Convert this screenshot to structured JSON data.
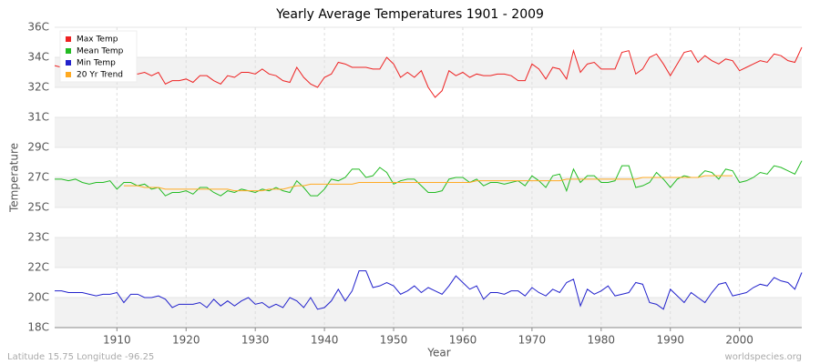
{
  "chart_data": {
    "type": "line",
    "title": "Yearly Average Temperatures 1901 - 2009",
    "xlabel": "Year",
    "ylabel": "Temperature",
    "footer_left": "Latitude 15.75 Longitude -96.25",
    "footer_right": "worldspecies.org",
    "x": [
      1901,
      1902,
      1903,
      1904,
      1905,
      1906,
      1907,
      1908,
      1909,
      1910,
      1911,
      1912,
      1913,
      1914,
      1915,
      1916,
      1917,
      1918,
      1919,
      1920,
      1921,
      1922,
      1923,
      1924,
      1925,
      1926,
      1927,
      1928,
      1929,
      1930,
      1931,
      1932,
      1933,
      1934,
      1935,
      1936,
      1937,
      1938,
      1939,
      1940,
      1941,
      1942,
      1943,
      1944,
      1945,
      1946,
      1947,
      1948,
      1949,
      1950,
      1951,
      1952,
      1953,
      1954,
      1955,
      1956,
      1957,
      1958,
      1959,
      1960,
      1961,
      1962,
      1963,
      1964,
      1965,
      1966,
      1967,
      1968,
      1969,
      1970,
      1971,
      1972,
      1973,
      1974,
      1975,
      1976,
      1977,
      1978,
      1979,
      1980,
      1981,
      1982,
      1983,
      1984,
      1985,
      1986,
      1987,
      1988,
      1989,
      1990,
      1991,
      1992,
      1993,
      1994,
      1995,
      1996,
      1997,
      1998,
      1999,
      2000,
      2001,
      2002,
      2003,
      2004,
      2005,
      2006,
      2007,
      2008,
      2009
    ],
    "xlim": [
      1901,
      2009
    ],
    "xticks": [
      1910,
      1920,
      1930,
      1940,
      1950,
      1960,
      1970,
      1980,
      1990,
      2000
    ],
    "ylim": [
      18,
      36
    ],
    "yticks": [
      {
        "value": 18,
        "label": "18C"
      },
      {
        "value": 19.8,
        "label": "20C"
      },
      {
        "value": 21.6,
        "label": "22C"
      },
      {
        "value": 23.4,
        "label": "23C"
      },
      {
        "value": 25.2,
        "label": "25C"
      },
      {
        "value": 27,
        "label": "27C"
      },
      {
        "value": 28.8,
        "label": "29C"
      },
      {
        "value": 30.6,
        "label": "31C"
      },
      {
        "value": 32.4,
        "label": "32C"
      },
      {
        "value": 34.2,
        "label": "34C"
      },
      {
        "value": 36,
        "label": "36C"
      }
    ],
    "grid": true,
    "legend": "upper left",
    "series": [
      {
        "name": "Max Temp",
        "color": "#ee2222",
        "values": [
          33.7,
          33.6,
          33.7,
          33.5,
          33.6,
          33.4,
          33.5,
          33.7,
          33.6,
          33.3,
          33.4,
          33.3,
          33.2,
          33.3,
          33.1,
          33.3,
          32.6,
          32.8,
          32.8,
          32.9,
          32.7,
          33.1,
          33.1,
          32.8,
          32.6,
          33.1,
          33.0,
          33.3,
          33.3,
          33.2,
          33.5,
          33.2,
          33.1,
          32.8,
          32.7,
          33.6,
          33.0,
          32.6,
          32.4,
          33.0,
          33.2,
          33.9,
          33.8,
          33.6,
          33.6,
          33.6,
          33.5,
          33.5,
          34.2,
          33.8,
          33.0,
          33.3,
          33.0,
          33.4,
          32.4,
          31.8,
          32.2,
          33.4,
          33.1,
          33.3,
          33.0,
          33.2,
          33.1,
          33.1,
          33.2,
          33.2,
          33.1,
          32.8,
          32.8,
          33.8,
          33.5,
          32.9,
          33.6,
          33.5,
          32.9,
          34.6,
          33.3,
          33.8,
          33.9,
          33.5,
          33.5,
          33.5,
          34.5,
          34.6,
          33.2,
          33.5,
          34.2,
          34.4,
          33.8,
          33.1,
          33.8,
          34.5,
          34.6,
          33.9,
          34.3,
          34.0,
          33.8,
          34.1,
          34.0,
          33.4,
          33.6,
          33.8,
          34.0,
          33.9,
          34.4,
          34.3,
          34.0,
          33.9,
          34.8
        ]
      },
      {
        "name": "Mean Temp",
        "color": "#22bb22",
        "values": [
          26.9,
          26.9,
          26.8,
          26.9,
          26.7,
          26.6,
          26.7,
          26.7,
          26.8,
          26.3,
          26.7,
          26.7,
          26.5,
          26.6,
          26.3,
          26.4,
          25.9,
          26.1,
          26.1,
          26.2,
          26.0,
          26.4,
          26.4,
          26.1,
          25.9,
          26.2,
          26.1,
          26.3,
          26.2,
          26.1,
          26.3,
          26.2,
          26.4,
          26.2,
          26.1,
          26.8,
          26.4,
          25.9,
          25.9,
          26.3,
          26.9,
          26.8,
          27.0,
          27.5,
          27.5,
          27.0,
          27.1,
          27.6,
          27.3,
          26.6,
          26.8,
          26.9,
          26.9,
          26.5,
          26.1,
          26.1,
          26.2,
          26.9,
          27.0,
          27.0,
          26.7,
          26.9,
          26.5,
          26.7,
          26.7,
          26.6,
          26.7,
          26.8,
          26.5,
          27.1,
          26.8,
          26.4,
          27.1,
          27.2,
          26.2,
          27.5,
          26.7,
          27.1,
          27.1,
          26.7,
          26.7,
          26.8,
          27.7,
          27.7,
          26.4,
          26.5,
          26.7,
          27.3,
          26.9,
          26.4,
          26.9,
          27.1,
          27.0,
          27.0,
          27.4,
          27.3,
          26.9,
          27.5,
          27.4,
          26.7,
          26.8,
          27.0,
          27.3,
          27.2,
          27.7,
          27.6,
          27.4,
          27.2,
          28.0
        ]
      },
      {
        "name": "Min Temp",
        "color": "#2222cc",
        "values": [
          20.2,
          20.2,
          20.1,
          20.1,
          20.1,
          20.0,
          19.9,
          20.0,
          20.0,
          20.1,
          19.5,
          20.0,
          20.0,
          19.8,
          19.8,
          19.9,
          19.7,
          19.2,
          19.4,
          19.4,
          19.4,
          19.5,
          19.2,
          19.7,
          19.3,
          19.6,
          19.3,
          19.6,
          19.8,
          19.4,
          19.5,
          19.2,
          19.4,
          19.2,
          19.8,
          19.6,
          19.2,
          19.8,
          19.1,
          19.2,
          19.6,
          20.3,
          19.6,
          20.2,
          21.4,
          21.4,
          20.4,
          20.5,
          20.7,
          20.5,
          20.0,
          20.2,
          20.5,
          20.1,
          20.4,
          20.2,
          20.0,
          20.5,
          21.1,
          20.7,
          20.3,
          20.5,
          19.7,
          20.1,
          20.1,
          20.0,
          20.2,
          20.2,
          19.9,
          20.4,
          20.1,
          19.9,
          20.3,
          20.1,
          20.7,
          20.9,
          19.3,
          20.3,
          20.0,
          20.2,
          20.5,
          19.9,
          20.0,
          20.1,
          20.7,
          20.6,
          19.5,
          19.4,
          19.1,
          20.3,
          19.9,
          19.5,
          20.1,
          19.8,
          19.5,
          20.1,
          20.6,
          20.7,
          19.9,
          20.0,
          20.1,
          20.4,
          20.6,
          20.5,
          21.0,
          20.8,
          20.7,
          20.3,
          21.3
        ]
      },
      {
        "name": "20 Yr Trend",
        "color": "#ffaa22",
        "values": [
          null,
          null,
          null,
          null,
          null,
          null,
          null,
          null,
          null,
          null,
          26.5,
          26.5,
          26.5,
          26.4,
          26.4,
          26.4,
          26.3,
          26.3,
          26.3,
          26.3,
          26.3,
          26.3,
          26.3,
          26.3,
          26.3,
          26.3,
          26.2,
          26.2,
          26.2,
          26.2,
          26.2,
          26.3,
          26.3,
          26.3,
          26.4,
          26.5,
          26.5,
          26.6,
          26.6,
          26.6,
          26.6,
          26.6,
          26.6,
          26.6,
          26.7,
          26.7,
          26.7,
          26.7,
          26.7,
          26.7,
          26.7,
          26.7,
          26.7,
          26.7,
          26.7,
          26.7,
          26.7,
          26.7,
          26.7,
          26.7,
          26.7,
          26.8,
          26.8,
          26.8,
          26.8,
          26.8,
          26.8,
          26.8,
          26.8,
          26.8,
          26.8,
          26.8,
          26.8,
          26.8,
          26.9,
          26.9,
          26.9,
          26.9,
          26.9,
          26.9,
          26.9,
          26.9,
          26.9,
          26.9,
          26.9,
          27.0,
          27.0,
          27.0,
          27.0,
          27.0,
          27.0,
          27.0,
          27.0,
          27.0,
          27.1,
          27.1,
          27.1,
          27.1,
          27.1,
          null,
          null,
          null,
          null,
          null,
          null,
          null,
          null,
          null,
          null
        ]
      }
    ]
  }
}
